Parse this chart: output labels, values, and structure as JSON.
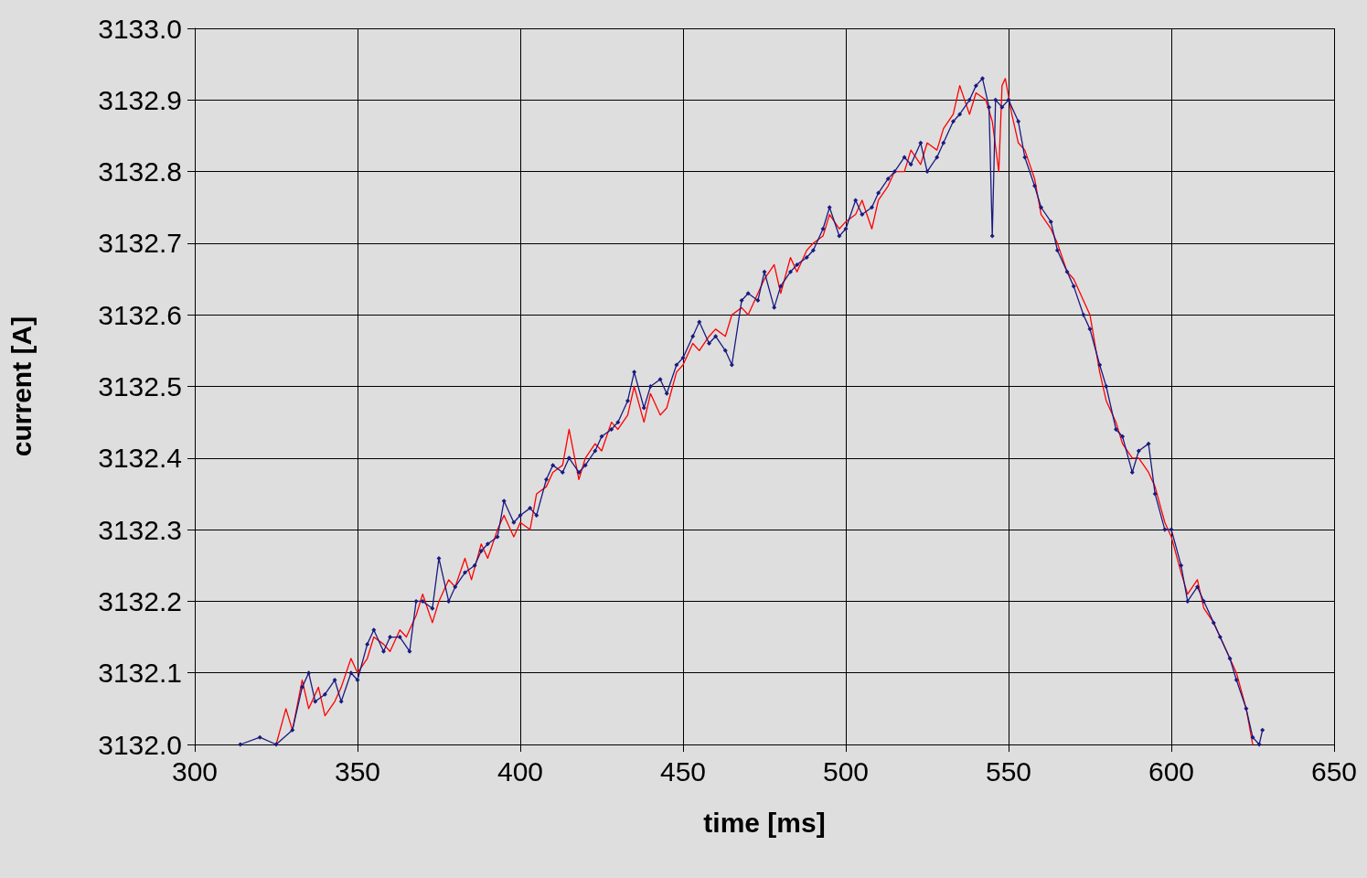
{
  "chart_data": {
    "type": "line",
    "xlabel": "time [ms]",
    "ylabel": "current [A]",
    "xlim": [
      300,
      650
    ],
    "xticks": [
      300,
      350,
      400,
      450,
      500,
      550,
      600,
      650
    ],
    "ylim": [
      3132.0,
      3133.0
    ],
    "yticks": [
      {
        "value": 3132.0,
        "label": "3132.0"
      },
      {
        "value": 3132.1,
        "label": "3132.1"
      },
      {
        "value": 3132.2,
        "label": "3132.2"
      },
      {
        "value": 3132.3,
        "label": "3132.3"
      },
      {
        "value": 3132.4,
        "label": "3132.4"
      },
      {
        "value": 3132.5,
        "label": "3132.5"
      },
      {
        "value": 3132.6,
        "label": "3132.6"
      },
      {
        "value": 3132.7,
        "label": "3132.7"
      },
      {
        "value": 3132.8,
        "label": "3132.8"
      },
      {
        "value": 3132.9,
        "label": "3132.9"
      },
      {
        "value": 3133.0,
        "label": "3133.0"
      }
    ],
    "grid": true,
    "line_style": "solid",
    "series": [
      {
        "color": "#ff0000",
        "marker": "none",
        "x": [
          325,
          328,
          330,
          333,
          335,
          338,
          340,
          343,
          345,
          348,
          350,
          353,
          355,
          358,
          360,
          363,
          365,
          368,
          370,
          373,
          375,
          378,
          380,
          383,
          385,
          388,
          390,
          393,
          395,
          398,
          400,
          403,
          405,
          408,
          410,
          413,
          415,
          418,
          420,
          423,
          425,
          428,
          430,
          433,
          435,
          438,
          440,
          443,
          445,
          448,
          450,
          453,
          455,
          458,
          460,
          463,
          465,
          468,
          470,
          473,
          475,
          478,
          480,
          483,
          485,
          488,
          490,
          493,
          495,
          498,
          500,
          503,
          505,
          508,
          510,
          513,
          515,
          518,
          520,
          523,
          525,
          528,
          530,
          533,
          535,
          538,
          540,
          543,
          545,
          547,
          548,
          549,
          551,
          553,
          555,
          558,
          560,
          563,
          565,
          568,
          570,
          573,
          575,
          578,
          580,
          583,
          585,
          588,
          590,
          593,
          595,
          598,
          600,
          603,
          605,
          608,
          610,
          613,
          615,
          618,
          620,
          623,
          625
        ],
        "values": [
          3132.0,
          3132.05,
          3132.02,
          3132.09,
          3132.05,
          3132.08,
          3132.04,
          3132.06,
          3132.08,
          3132.12,
          3132.1,
          3132.12,
          3132.15,
          3132.14,
          3132.13,
          3132.16,
          3132.15,
          3132.18,
          3132.21,
          3132.17,
          3132.2,
          3132.23,
          3132.22,
          3132.26,
          3132.23,
          3132.28,
          3132.26,
          3132.3,
          3132.32,
          3132.29,
          3132.31,
          3132.3,
          3132.35,
          3132.36,
          3132.38,
          3132.39,
          3132.44,
          3132.37,
          3132.4,
          3132.42,
          3132.41,
          3132.45,
          3132.44,
          3132.46,
          3132.5,
          3132.45,
          3132.49,
          3132.46,
          3132.47,
          3132.52,
          3132.53,
          3132.56,
          3132.55,
          3132.57,
          3132.58,
          3132.57,
          3132.6,
          3132.61,
          3132.6,
          3132.63,
          3132.65,
          3132.67,
          3132.63,
          3132.68,
          3132.66,
          3132.69,
          3132.7,
          3132.71,
          3132.74,
          3132.72,
          3132.73,
          3132.74,
          3132.76,
          3132.72,
          3132.76,
          3132.78,
          3132.8,
          3132.8,
          3132.83,
          3132.81,
          3132.84,
          3132.83,
          3132.86,
          3132.88,
          3132.92,
          3132.88,
          3132.91,
          3132.9,
          3132.87,
          3132.8,
          3132.92,
          3132.93,
          3132.88,
          3132.84,
          3132.83,
          3132.79,
          3132.74,
          3132.72,
          3132.7,
          3132.66,
          3132.65,
          3132.62,
          3132.6,
          3132.52,
          3132.48,
          3132.45,
          3132.42,
          3132.4,
          3132.4,
          3132.38,
          3132.36,
          3132.31,
          3132.29,
          3132.24,
          3132.21,
          3132.23,
          3132.19,
          3132.17,
          3132.15,
          3132.12,
          3132.1,
          3132.05,
          3132.0
        ]
      },
      {
        "color": "#1a1a80",
        "marker": "diamond",
        "x": [
          314,
          320,
          325,
          330,
          333,
          335,
          337,
          340,
          343,
          345,
          348,
          350,
          353,
          355,
          358,
          360,
          363,
          366,
          368,
          370,
          373,
          375,
          378,
          380,
          383,
          386,
          388,
          390,
          393,
          395,
          398,
          400,
          403,
          405,
          408,
          410,
          413,
          415,
          418,
          420,
          423,
          425,
          428,
          430,
          433,
          435,
          438,
          440,
          443,
          445,
          448,
          450,
          453,
          455,
          458,
          460,
          463,
          465,
          468,
          470,
          473,
          475,
          478,
          480,
          483,
          485,
          488,
          490,
          493,
          495,
          498,
          500,
          503,
          505,
          508,
          510,
          513,
          515,
          518,
          520,
          523,
          525,
          528,
          530,
          533,
          535,
          538,
          540,
          542,
          544,
          545,
          546,
          548,
          550,
          553,
          555,
          558,
          560,
          563,
          565,
          568,
          570,
          573,
          575,
          578,
          580,
          583,
          585,
          588,
          590,
          593,
          595,
          598,
          600,
          603,
          605,
          608,
          610,
          613,
          615,
          618,
          620,
          623,
          625,
          627,
          628
        ],
        "values": [
          3132.0,
          3132.01,
          3132.0,
          3132.02,
          3132.08,
          3132.1,
          3132.06,
          3132.07,
          3132.09,
          3132.06,
          3132.1,
          3132.09,
          3132.14,
          3132.16,
          3132.13,
          3132.15,
          3132.15,
          3132.13,
          3132.2,
          3132.2,
          3132.19,
          3132.26,
          3132.2,
          3132.22,
          3132.24,
          3132.25,
          3132.27,
          3132.28,
          3132.29,
          3132.34,
          3132.31,
          3132.32,
          3132.33,
          3132.32,
          3132.37,
          3132.39,
          3132.38,
          3132.4,
          3132.38,
          3132.39,
          3132.41,
          3132.43,
          3132.44,
          3132.45,
          3132.48,
          3132.52,
          3132.47,
          3132.5,
          3132.51,
          3132.49,
          3132.53,
          3132.54,
          3132.57,
          3132.59,
          3132.56,
          3132.57,
          3132.55,
          3132.53,
          3132.62,
          3132.63,
          3132.62,
          3132.66,
          3132.61,
          3132.64,
          3132.66,
          3132.67,
          3132.68,
          3132.69,
          3132.72,
          3132.75,
          3132.71,
          3132.72,
          3132.76,
          3132.74,
          3132.75,
          3132.77,
          3132.79,
          3132.8,
          3132.82,
          3132.81,
          3132.84,
          3132.8,
          3132.82,
          3132.84,
          3132.87,
          3132.88,
          3132.9,
          3132.92,
          3132.93,
          3132.89,
          3132.71,
          3132.9,
          3132.89,
          3132.9,
          3132.87,
          3132.82,
          3132.78,
          3132.75,
          3132.73,
          3132.69,
          3132.66,
          3132.64,
          3132.6,
          3132.58,
          3132.53,
          3132.5,
          3132.44,
          3132.43,
          3132.38,
          3132.41,
          3132.42,
          3132.35,
          3132.3,
          3132.3,
          3132.25,
          3132.2,
          3132.22,
          3132.2,
          3132.17,
          3132.15,
          3132.12,
          3132.09,
          3132.05,
          3132.01,
          3132.0,
          3132.02
        ]
      }
    ]
  }
}
